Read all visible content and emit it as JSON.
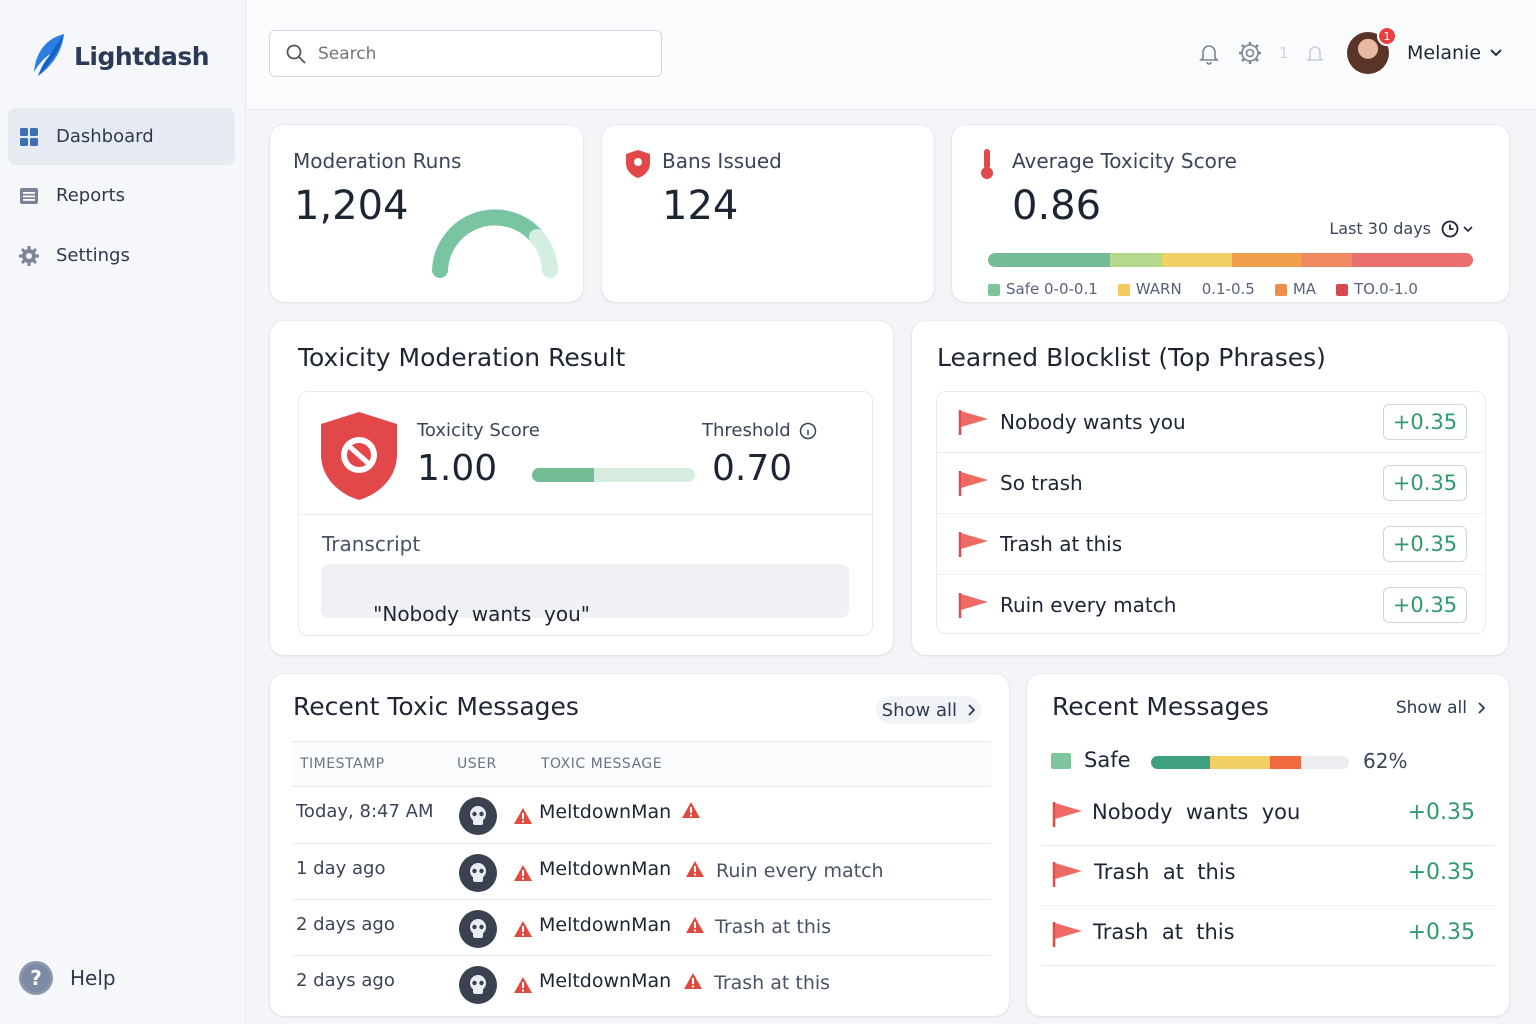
{
  "app": {
    "name": "Lightdash"
  },
  "sidebar": {
    "items": [
      {
        "label": "Dashboard"
      },
      {
        "label": "Reports"
      },
      {
        "label": "Settings"
      }
    ],
    "help_label": "Help"
  },
  "header": {
    "search_placeholder": "Search",
    "muted_count": "1",
    "notification_badge": "1",
    "user_name": "Melanie"
  },
  "stats": {
    "runs": {
      "title": "Moderation Runs",
      "value": "1,204"
    },
    "bans": {
      "title": "Bans Issued",
      "value": "124"
    },
    "toxicity": {
      "title": "Average Toxicity Score",
      "value": "0.86",
      "range_label": "Last 30 days",
      "legend": [
        {
          "label": "Safe 0-0-0.1",
          "color": "#7ec49c"
        },
        {
          "label": "WARN",
          "color": "#f3c95a"
        },
        {
          "label": "0.1-0.5",
          "color": null
        },
        {
          "label": "MA",
          "color": "#ef8f4a"
        },
        {
          "label": "TO.0-1.0",
          "color": "#d9474f"
        }
      ]
    }
  },
  "result": {
    "title": "Toxicity Moderation Result",
    "score_label": "Toxicity Score",
    "score_value": "1.00",
    "threshold_label": "Threshold",
    "threshold_value": "0.70",
    "transcript_label": "Transcript",
    "transcript_text": "\"Nobody  wants  you\""
  },
  "blocklist": {
    "title": "Learned Blocklist (Top Phrases)",
    "items": [
      {
        "phrase": "Nobody wants you",
        "score": "+0.35"
      },
      {
        "phrase": "So trash",
        "score": "+0.35"
      },
      {
        "phrase": "Trash at this",
        "score": "+0.35"
      },
      {
        "phrase": "Ruin every match",
        "score": "+0.35"
      }
    ]
  },
  "toxic_messages": {
    "title": "Recent Toxic Messages",
    "show_all": "Show all",
    "columns": [
      "TIMESTAMP",
      "USER",
      "TOXIC MESSAGE"
    ],
    "rows": [
      {
        "time": "Today, 8:47 AM",
        "user": "MeltdownMan",
        "message": ""
      },
      {
        "time": "1 day ago",
        "user": "MeltdownMan",
        "message": "Ruin every match"
      },
      {
        "time": "2 days ago",
        "user": "MeltdownMan",
        "message": "Trash at this"
      },
      {
        "time": "2 days ago",
        "user": "MeltdownMan",
        "message": "Trash at this"
      }
    ]
  },
  "recent_messages": {
    "title": "Recent Messages",
    "show_all": "Show all",
    "safe_label": "Safe",
    "safe_percent": "62%",
    "items": [
      {
        "phrase": "Nobody  wants  you",
        "score": "+0.35"
      },
      {
        "phrase": "Trash  at  this",
        "score": "+0.35"
      },
      {
        "phrase": "Trash  at  this",
        "score": "+0.35"
      }
    ]
  },
  "colors": {
    "accent": "#2f9a6b",
    "danger": "#e04b3f",
    "brand": "#2b3a55"
  }
}
